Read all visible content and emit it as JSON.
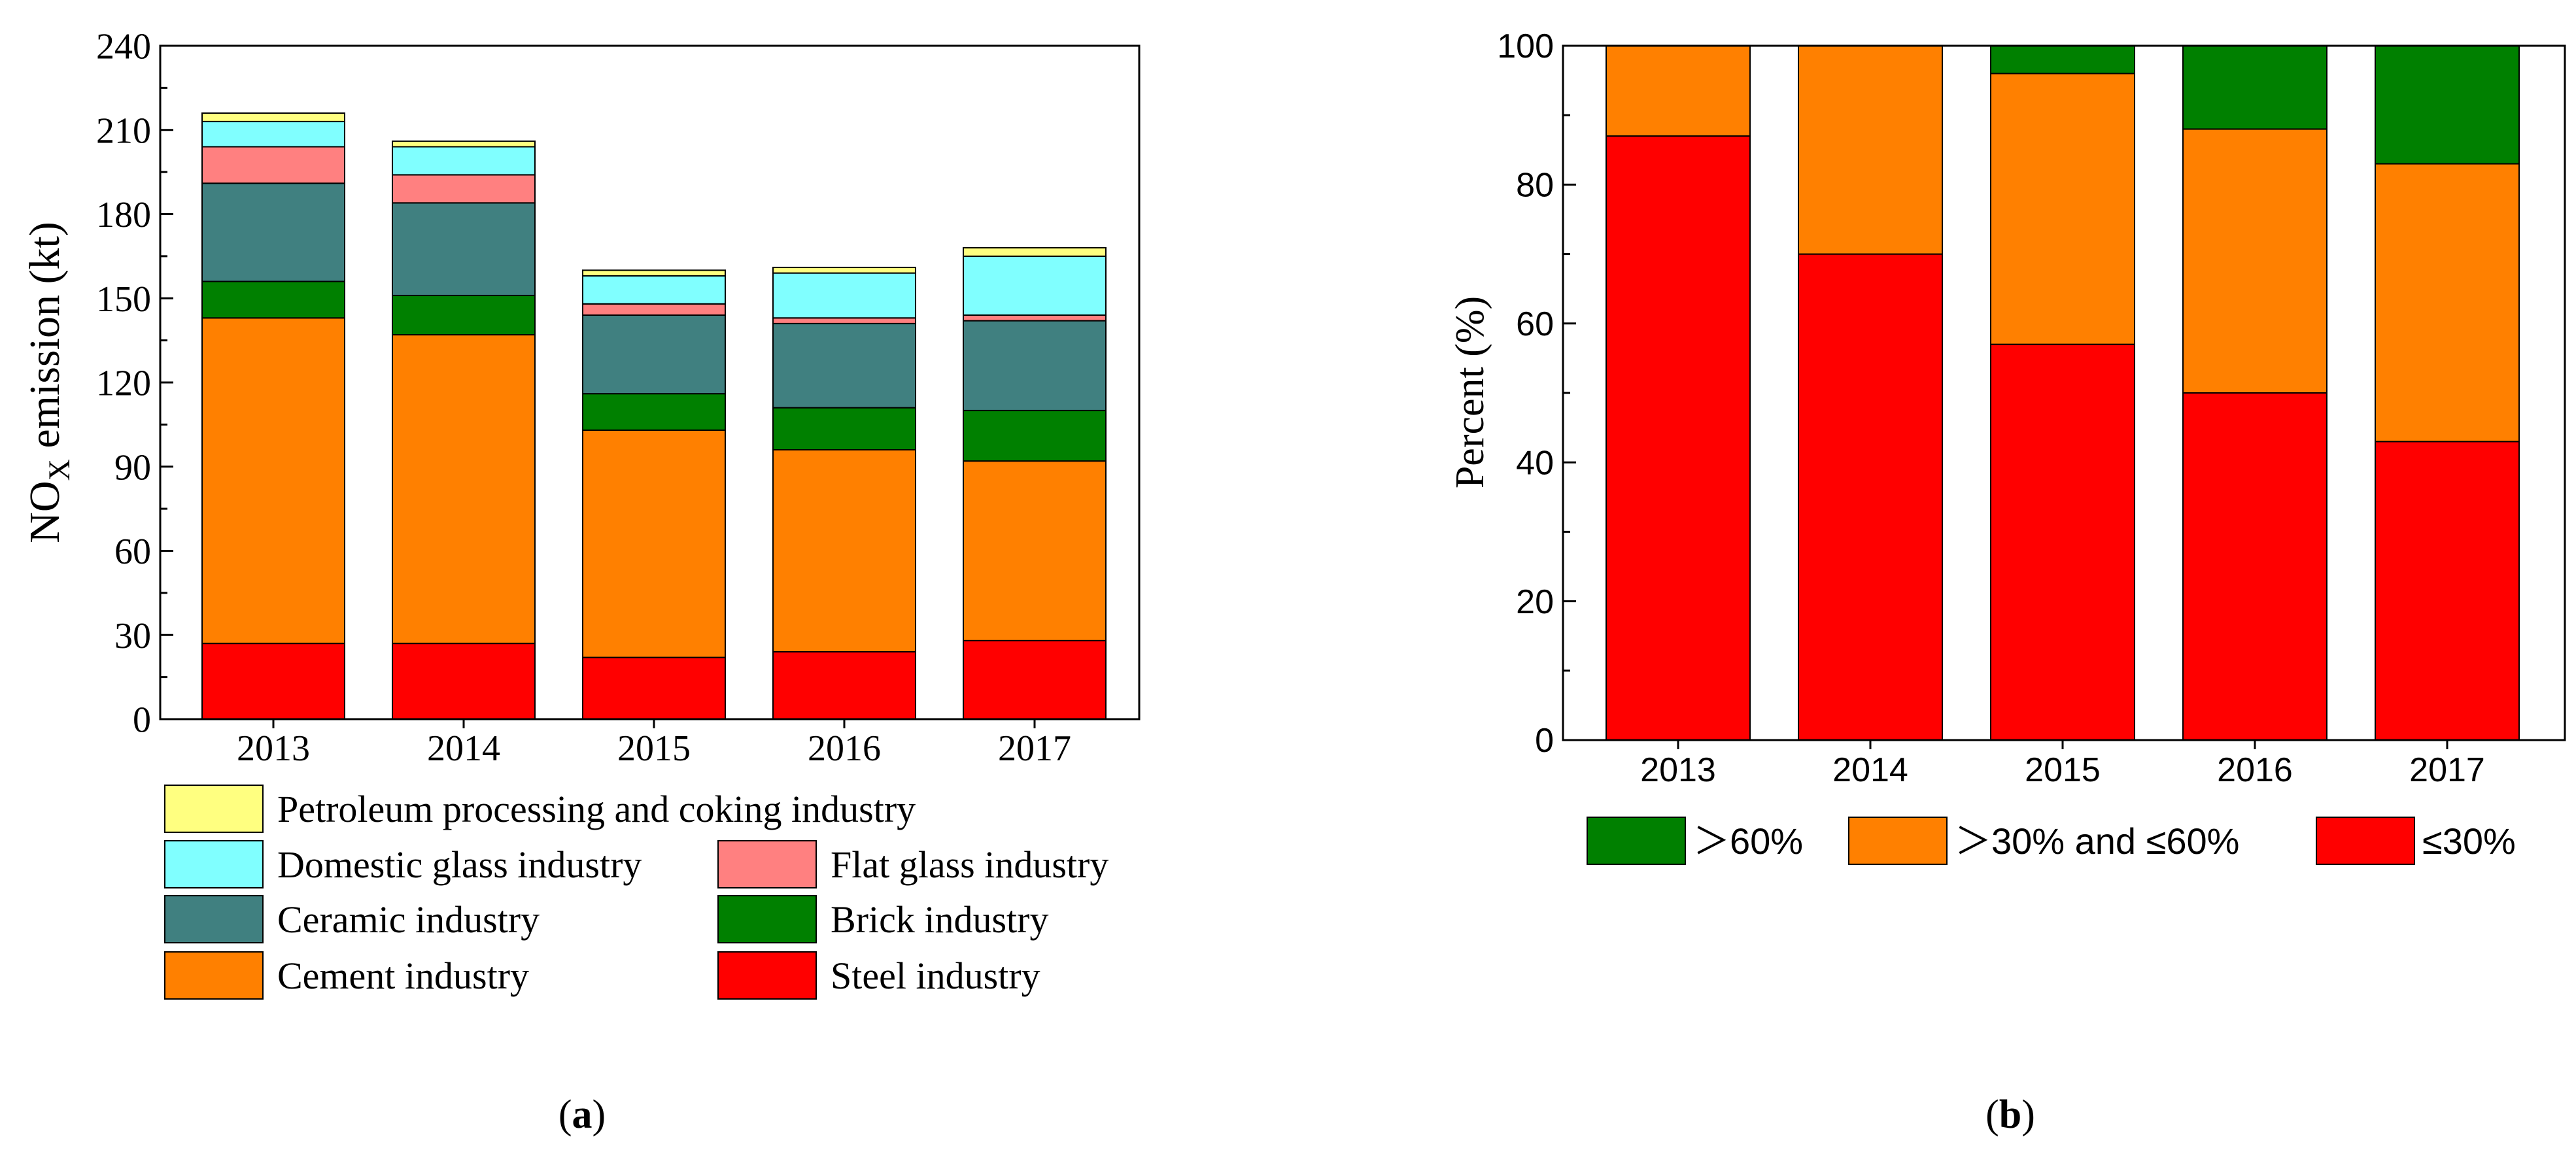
{
  "chart_data": [
    {
      "panel_label": "(a)",
      "panel_label_open": "(",
      "panel_label_letter": "a",
      "panel_label_close": ")",
      "type": "bar",
      "stacked": true,
      "title": "",
      "xlabel": "",
      "ylabel": "NOX emission (kt)",
      "ylabel_parts": {
        "main": "NO",
        "subscript": "X",
        "rest": " emission (kt)"
      },
      "ylim": [
        0,
        240
      ],
      "yticks": [
        0,
        30,
        60,
        90,
        120,
        150,
        180,
        210,
        240
      ],
      "categories": [
        "2013",
        "2014",
        "2015",
        "2016",
        "2017"
      ],
      "series": [
        {
          "name": "Steel industry",
          "color": "#ff0000",
          "values": [
            27,
            27,
            22,
            24,
            28
          ]
        },
        {
          "name": "Cement industry",
          "color": "#ff8000",
          "values": [
            116,
            110,
            81,
            72,
            64
          ]
        },
        {
          "name": "Brick industry",
          "color": "#008000",
          "values": [
            13,
            14,
            13,
            15,
            18
          ]
        },
        {
          "name": "Ceramic industry",
          "color": "#408080",
          "values": [
            35,
            33,
            28,
            30,
            32
          ]
        },
        {
          "name": "Flat glass industry",
          "color": "#ff8080",
          "values": [
            13,
            10,
            4,
            2,
            2
          ]
        },
        {
          "name": "Domestic glass industry",
          "color": "#80ffff",
          "values": [
            9,
            10,
            10,
            16,
            21
          ]
        },
        {
          "name": "Petroleum processing and coking industry",
          "color": "#ffff80",
          "values": [
            3,
            2,
            2,
            2,
            3
          ]
        }
      ],
      "legend": {
        "position": "below",
        "rows": [
          [
            "Petroleum processing and coking industry"
          ],
          [
            "Domestic glass industry",
            "Flat glass industry"
          ],
          [
            "Ceramic industry",
            "Brick industry"
          ],
          [
            "Cement industry",
            "Steel industry"
          ]
        ]
      }
    },
    {
      "panel_label": "(b)",
      "panel_label_open": "(",
      "panel_label_letter": "b",
      "panel_label_close": ")",
      "type": "bar",
      "stacked": true,
      "title": "",
      "xlabel": "",
      "ylabel": "Percent (%)",
      "ylim": [
        0,
        100
      ],
      "yticks": [
        0,
        20,
        40,
        60,
        80,
        100
      ],
      "categories": [
        "2013",
        "2014",
        "2015",
        "2016",
        "2017"
      ],
      "series": [
        {
          "name": "≤30%",
          "color": "#ff0000",
          "values": [
            87,
            70,
            57,
            50,
            43
          ]
        },
        {
          "name": "＞30% and ≤60%",
          "color": "#ff8000",
          "values": [
            13,
            30,
            39,
            38,
            40
          ]
        },
        {
          "name": "＞60%",
          "color": "#008000",
          "values": [
            0,
            0,
            4,
            12,
            17
          ]
        }
      ],
      "legend": {
        "position": "below",
        "order": [
          "＞60%",
          "＞30% and ≤60%",
          "≤30%"
        ]
      }
    }
  ]
}
